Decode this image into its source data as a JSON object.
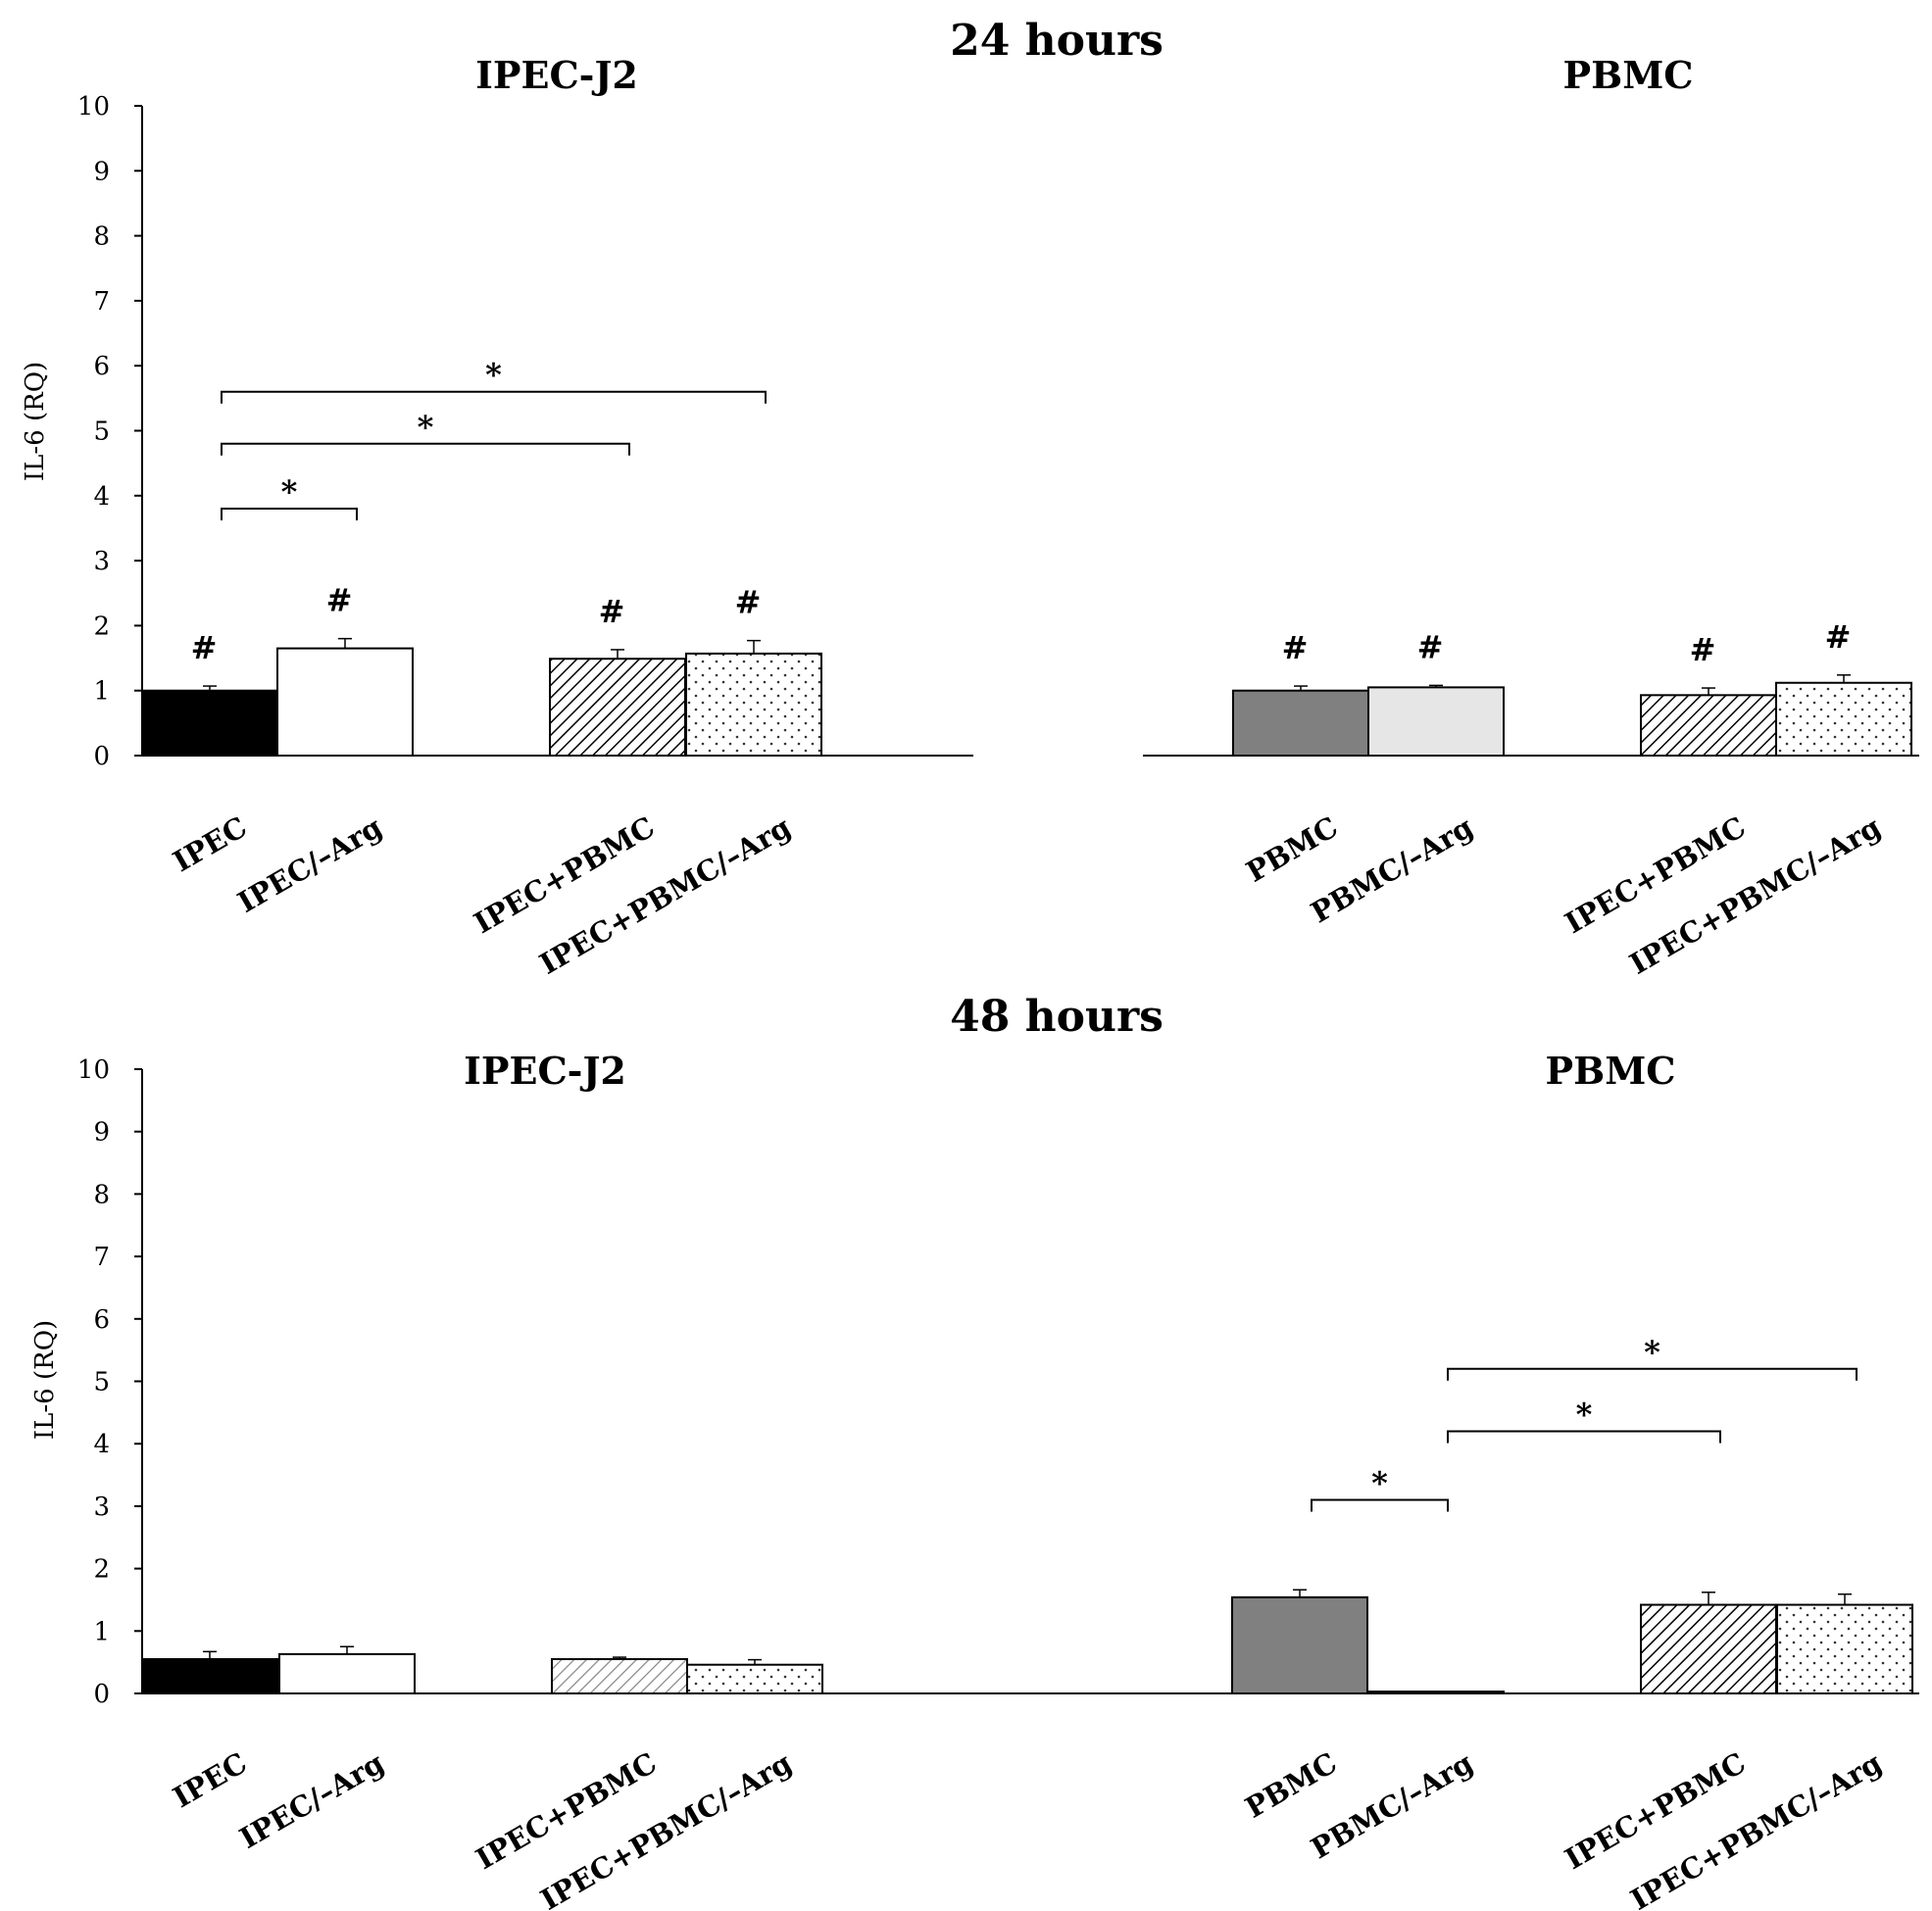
{
  "chart_data": [
    {
      "type": "bar",
      "title": "24 hours",
      "ylabel": "IL-6 (RQ)",
      "ylim": [
        0,
        10
      ],
      "yticks": [
        0,
        1,
        2,
        3,
        4,
        5,
        6,
        7,
        8,
        9,
        10
      ],
      "panels": [
        {
          "title": "IPEC-J2",
          "bars": [
            {
              "category": "IPEC",
              "value": 1.0,
              "error": 0.07,
              "fill": "black",
              "marker": "#"
            },
            {
              "category": "IPEC/–Arg",
              "value": 1.65,
              "error": 0.15,
              "fill": "white",
              "marker": "#"
            },
            {
              "category": "IPEC+PBMC",
              "value": 1.49,
              "error": 0.14,
              "fill": "hatch",
              "marker": "#"
            },
            {
              "category": "IPEC+PBMC/–Arg",
              "value": 1.57,
              "error": 0.2,
              "fill": "dots",
              "marker": "#"
            }
          ],
          "significance": [
            {
              "from": 0,
              "to": 1,
              "y": 3.8,
              "label": "*"
            },
            {
              "from": 0,
              "to": 2,
              "y": 4.8,
              "label": "*"
            },
            {
              "from": 0,
              "to": 3,
              "y": 5.6,
              "label": "*"
            }
          ]
        },
        {
          "title": "PBMC",
          "bars": [
            {
              "category": "PBMC",
              "value": 1.0,
              "error": 0.07,
              "fill": "#808080",
              "marker": "#"
            },
            {
              "category": "PBMC/–Arg",
              "value": 1.05,
              "error": 0.03,
              "fill": "#e6e6e6",
              "marker": "#"
            },
            {
              "category": "IPEC+PBMC",
              "value": 0.93,
              "error": 0.11,
              "fill": "hatch",
              "marker": "#"
            },
            {
              "category": "IPEC+PBMC/–Arg",
              "value": 1.12,
              "error": 0.12,
              "fill": "dots",
              "marker": "#"
            }
          ],
          "significance": []
        }
      ]
    },
    {
      "type": "bar",
      "title": "48 hours",
      "ylabel": "IL-6 (RQ)",
      "ylim": [
        0,
        10
      ],
      "yticks": [
        0,
        1,
        2,
        3,
        4,
        5,
        6,
        7,
        8,
        9,
        10
      ],
      "panels": [
        {
          "title": "IPEC-J2",
          "bars": [
            {
              "category": "IPEC",
              "value": 0.55,
              "error": 0.12,
              "fill": "black",
              "marker": ""
            },
            {
              "category": "IPEC/–Arg",
              "value": 0.63,
              "error": 0.12,
              "fill": "white",
              "marker": ""
            },
            {
              "category": "IPEC+PBMC",
              "value": 0.55,
              "error": 0.03,
              "fill": "hatch-light",
              "marker": ""
            },
            {
              "category": "IPEC+PBMC/–Arg",
              "value": 0.46,
              "error": 0.08,
              "fill": "dots",
              "marker": ""
            }
          ],
          "significance": []
        },
        {
          "title": "PBMC",
          "bars": [
            {
              "category": "PBMC",
              "value": 1.54,
              "error": 0.12,
              "fill": "#808080",
              "marker": ""
            },
            {
              "category": "PBMC/–Arg",
              "value": 0.03,
              "error": 0.0,
              "fill": "#e6e6e6",
              "marker": ""
            },
            {
              "category": "IPEC+PBMC",
              "value": 1.42,
              "error": 0.2,
              "fill": "hatch",
              "marker": ""
            },
            {
              "category": "IPEC+PBMC/–Arg",
              "value": 1.42,
              "error": 0.17,
              "fill": "dots",
              "marker": ""
            }
          ],
          "significance": [
            {
              "from": 0,
              "to": 1,
              "y": 3.1,
              "label": "*"
            },
            {
              "from": 1,
              "to": 2,
              "y": 4.2,
              "label": "*"
            },
            {
              "from": 1,
              "to": 3,
              "y": 5.2,
              "label": "*"
            }
          ]
        }
      ]
    }
  ]
}
